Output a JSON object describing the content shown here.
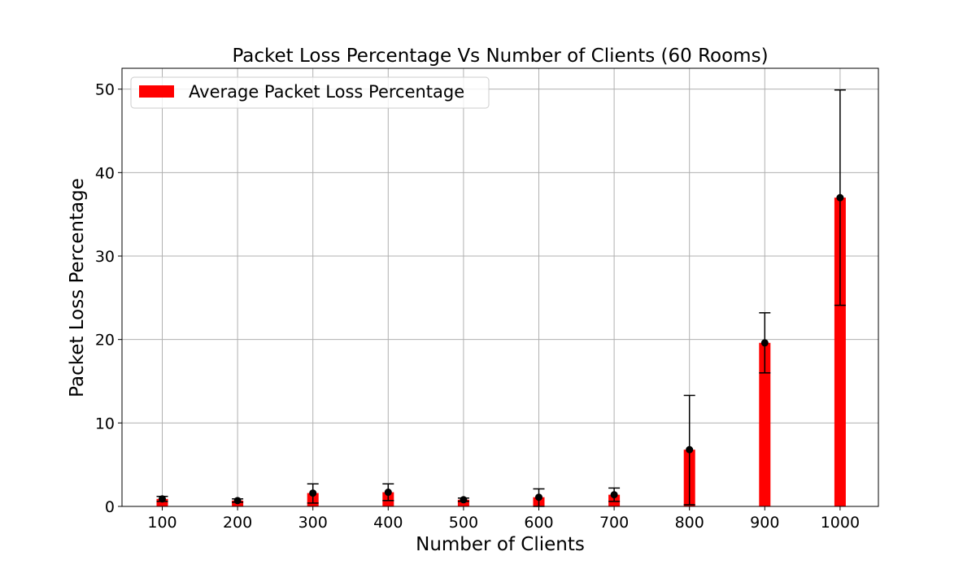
{
  "chart_data": {
    "type": "bar",
    "title": "Packet Loss Percentage Vs Number of Clients (60 Rooms)",
    "xlabel": "Number of Clients",
    "ylabel": "Packet Loss Percentage",
    "categories": [
      "100",
      "200",
      "300",
      "400",
      "500",
      "600",
      "700",
      "800",
      "900",
      "1000"
    ],
    "series": [
      {
        "name": "Average Packet Loss Percentage",
        "color": "#ff0000",
        "values": [
          0.9,
          0.7,
          1.6,
          1.7,
          0.8,
          1.1,
          1.4,
          6.8,
          19.6,
          37.0
        ],
        "error_low": [
          0.6,
          0.5,
          0.4,
          0.7,
          0.6,
          0.0,
          0.6,
          0.2,
          16.0,
          24.1
        ],
        "error_high": [
          1.2,
          0.9,
          2.7,
          2.7,
          1.0,
          2.1,
          2.2,
          13.3,
          23.2,
          49.9
        ]
      }
    ],
    "ylim": [
      0,
      52.5
    ],
    "yticks": [
      0,
      10,
      20,
      30,
      40,
      50
    ],
    "grid": true,
    "legend_position": "top-left"
  }
}
